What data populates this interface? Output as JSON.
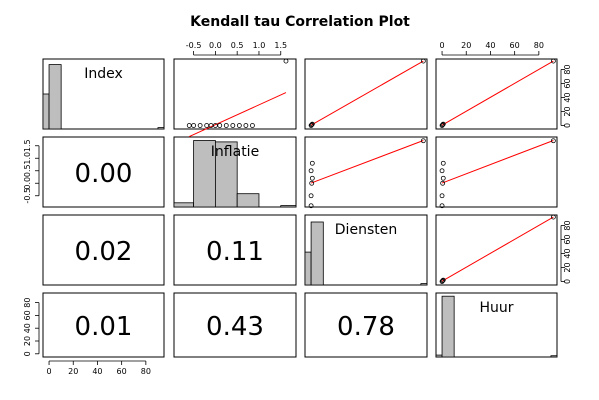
{
  "chart_data": {
    "type": "scatter",
    "title": "Kendall tau Correlation Plot",
    "variables": [
      "Index",
      "Inflatie",
      "Diensten",
      "Huur"
    ],
    "correlations": [
      {
        "row": 1,
        "col": 0,
        "label": "0.00"
      },
      {
        "row": 2,
        "col": 0,
        "label": "0.02"
      },
      {
        "row": 2,
        "col": 1,
        "label": "0.11"
      },
      {
        "row": 3,
        "col": 0,
        "label": "0.01"
      },
      {
        "row": 3,
        "col": 1,
        "label": "0.43"
      },
      {
        "row": 3,
        "col": 2,
        "label": "0.78"
      }
    ],
    "axes": {
      "index": {
        "range": [
          -5,
          95
        ],
        "ticks": [
          0,
          20,
          40,
          60,
          80
        ]
      },
      "inflatie": {
        "range": [
          -0.95,
          1.85
        ],
        "ticks": [
          -0.5,
          0.0,
          0.5,
          1.0,
          1.5
        ],
        "tick_labels": [
          "-0.5",
          "0.0",
          "0.5",
          "1.0",
          "1.5"
        ]
      },
      "diensten": {
        "range": [
          -5,
          95
        ],
        "ticks": [
          0,
          20,
          40,
          60,
          80
        ]
      },
      "huur": {
        "range": [
          -5,
          95
        ],
        "ticks": [
          0,
          20,
          40,
          60,
          80
        ]
      }
    },
    "histograms": [
      {
        "variable": "Index",
        "bins": [
          [
            -5,
            0,
            0.5
          ],
          [
            0,
            10,
            0.92
          ],
          [
            10,
            20,
            0
          ],
          [
            20,
            30,
            0
          ],
          [
            30,
            40,
            0
          ],
          [
            40,
            50,
            0
          ],
          [
            50,
            60,
            0
          ],
          [
            60,
            70,
            0
          ],
          [
            70,
            80,
            0
          ],
          [
            80,
            90,
            0
          ],
          [
            90,
            95,
            0.02
          ]
        ]
      },
      {
        "variable": "Inflatie",
        "bins": [
          [
            -0.95,
            -0.5,
            0.06
          ],
          [
            -0.5,
            0.0,
            0.95
          ],
          [
            0.0,
            0.5,
            0.93
          ],
          [
            0.5,
            1.0,
            0.19
          ],
          [
            1.0,
            1.5,
            0
          ],
          [
            1.5,
            1.85,
            0.02
          ]
        ]
      },
      {
        "variable": "Diensten",
        "bins": [
          [
            -5,
            0,
            0.47
          ],
          [
            0,
            10,
            0.9
          ],
          [
            10,
            20,
            0
          ],
          [
            20,
            30,
            0
          ],
          [
            30,
            40,
            0
          ],
          [
            40,
            50,
            0
          ],
          [
            50,
            60,
            0
          ],
          [
            60,
            70,
            0
          ],
          [
            70,
            80,
            0
          ],
          [
            80,
            90,
            0
          ],
          [
            90,
            95,
            0.02
          ]
        ]
      },
      {
        "variable": "Huur",
        "bins": [
          [
            -5,
            0,
            0.03
          ],
          [
            0,
            10,
            0.95
          ],
          [
            10,
            20,
            0
          ],
          [
            20,
            30,
            0
          ],
          [
            30,
            40,
            0
          ],
          [
            40,
            50,
            0
          ],
          [
            50,
            60,
            0
          ],
          [
            60,
            70,
            0
          ],
          [
            70,
            80,
            0
          ],
          [
            80,
            90,
            0
          ],
          [
            90,
            95,
            0.02
          ]
        ]
      }
    ],
    "scatter_points": {
      "index_vs_inflatie": [
        [
          0,
          -0.2
        ],
        [
          0,
          -0.1
        ],
        [
          0,
          0.0
        ],
        [
          0,
          0.1
        ],
        [
          0,
          0.25
        ],
        [
          0,
          0.4
        ],
        [
          0,
          0.55
        ],
        [
          0,
          0.7
        ],
        [
          0,
          0.85
        ],
        [
          0,
          -0.35
        ],
        [
          0,
          -0.5
        ],
        [
          0,
          -0.6
        ],
        [
          92,
          1.62
        ]
      ],
      "index_vs_diensten": [
        [
          0,
          0
        ],
        [
          1,
          0.5
        ],
        [
          2,
          1
        ],
        [
          92,
          92
        ]
      ],
      "inflatie_vs_diensten": [
        [
          -0.9,
          0
        ],
        [
          -0.5,
          0
        ],
        [
          0.0,
          0.5
        ],
        [
          0.2,
          1
        ],
        [
          0.5,
          0
        ],
        [
          0.8,
          1
        ],
        [
          1.7,
          92
        ]
      ],
      "inflatie_vs_huur": [
        [
          -0.9,
          0
        ],
        [
          -0.5,
          0
        ],
        [
          0.0,
          0.5
        ],
        [
          0.2,
          1
        ],
        [
          0.5,
          0
        ],
        [
          0.8,
          1
        ],
        [
          1.7,
          92
        ]
      ],
      "diensten_vs_huur": [
        [
          0,
          0
        ],
        [
          1,
          0.5
        ],
        [
          2,
          1
        ],
        [
          92,
          92
        ]
      ],
      "index_vs_huur": [
        [
          0,
          0
        ],
        [
          1,
          0.5
        ],
        [
          2,
          1
        ],
        [
          92,
          92
        ]
      ]
    }
  }
}
